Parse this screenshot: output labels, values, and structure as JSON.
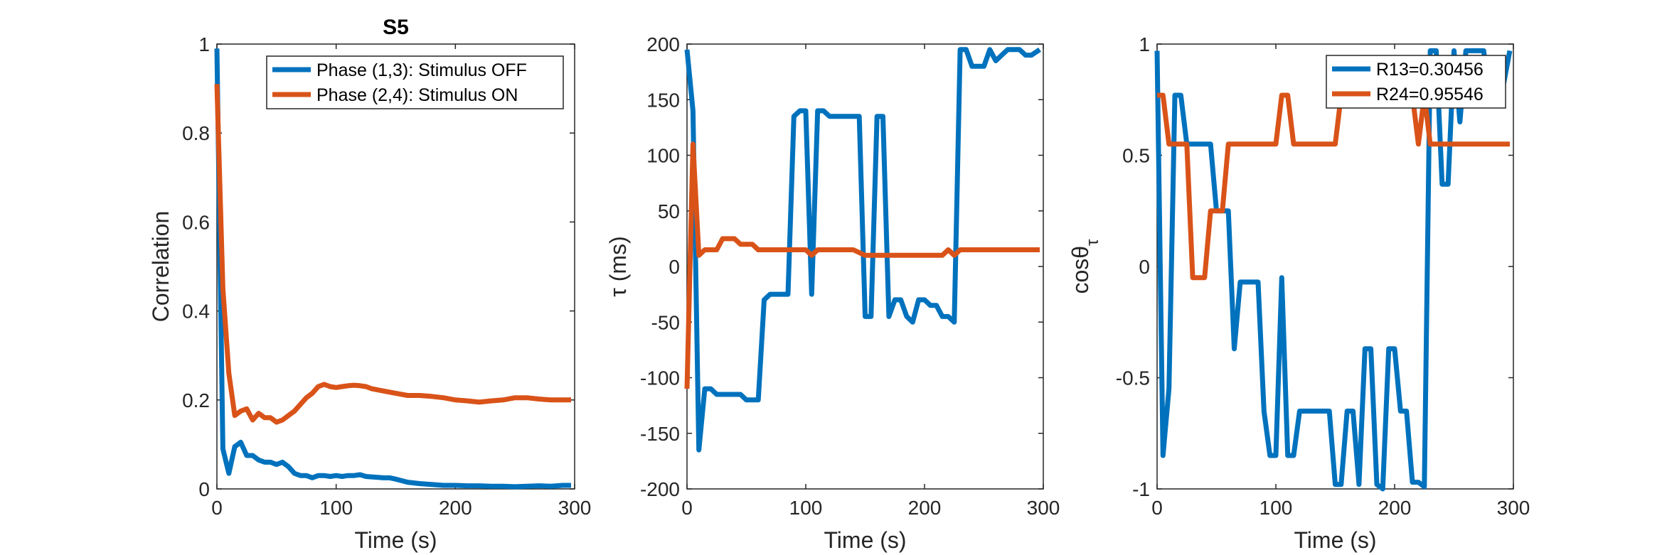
{
  "chart_data": [
    {
      "type": "line",
      "title": "S5",
      "xlabel": "Time (s)",
      "ylabel": "Correlation",
      "xlim": [
        0,
        300
      ],
      "ylim": [
        0,
        1
      ],
      "xticks": [
        "0",
        "100",
        "200",
        "300"
      ],
      "yticks": [
        "0",
        "0.2",
        "0.4",
        "0.6",
        "0.8",
        "1"
      ],
      "legend_position": "top-right",
      "series": [
        {
          "name": "Phase (1,3): Stimulus OFF",
          "color": "#0072BD",
          "x": [
            0,
            5,
            10,
            15,
            20,
            25,
            30,
            35,
            40,
            45,
            50,
            55,
            60,
            65,
            70,
            75,
            80,
            85,
            90,
            95,
            100,
            105,
            110,
            115,
            120,
            125,
            130,
            135,
            140,
            145,
            150,
            160,
            170,
            180,
            190,
            200,
            210,
            220,
            230,
            240,
            250,
            260,
            270,
            280,
            290,
            297
          ],
          "y": [
            0.99,
            0.09,
            0.035,
            0.095,
            0.105,
            0.075,
            0.075,
            0.065,
            0.06,
            0.06,
            0.055,
            0.06,
            0.05,
            0.035,
            0.03,
            0.03,
            0.025,
            0.03,
            0.03,
            0.028,
            0.03,
            0.028,
            0.03,
            0.03,
            0.032,
            0.028,
            0.027,
            0.026,
            0.025,
            0.025,
            0.022,
            0.015,
            0.012,
            0.01,
            0.008,
            0.008,
            0.007,
            0.007,
            0.006,
            0.006,
            0.005,
            0.006,
            0.007,
            0.006,
            0.008,
            0.008
          ]
        },
        {
          "name": "Phase (2,4): Stimulus ON",
          "color": "#D95319",
          "x": [
            0,
            5,
            10,
            15,
            20,
            25,
            30,
            35,
            40,
            45,
            50,
            55,
            60,
            65,
            70,
            75,
            80,
            85,
            90,
            95,
            100,
            105,
            110,
            115,
            120,
            125,
            130,
            140,
            150,
            160,
            170,
            180,
            190,
            200,
            210,
            220,
            230,
            240,
            250,
            260,
            270,
            280,
            290,
            297
          ],
          "y": [
            0.91,
            0.45,
            0.26,
            0.165,
            0.175,
            0.18,
            0.155,
            0.17,
            0.16,
            0.16,
            0.15,
            0.155,
            0.165,
            0.175,
            0.19,
            0.205,
            0.215,
            0.23,
            0.235,
            0.23,
            0.228,
            0.23,
            0.232,
            0.233,
            0.232,
            0.23,
            0.225,
            0.22,
            0.215,
            0.21,
            0.21,
            0.208,
            0.205,
            0.2,
            0.198,
            0.195,
            0.198,
            0.2,
            0.205,
            0.205,
            0.202,
            0.2,
            0.2,
            0.2
          ]
        }
      ]
    },
    {
      "type": "line",
      "title": "",
      "xlabel": "Time (s)",
      "ylabel": "τ (ms)",
      "xlim": [
        0,
        300
      ],
      "ylim": [
        -200,
        200
      ],
      "xticks": [
        "0",
        "100",
        "200",
        "300"
      ],
      "yticks": [
        "-200",
        "-150",
        "-100",
        "-50",
        "0",
        "50",
        "100",
        "150",
        "200"
      ],
      "series": [
        {
          "color": "#0072BD",
          "x": [
            0,
            5,
            10,
            15,
            20,
            25,
            30,
            35,
            40,
            45,
            50,
            55,
            60,
            65,
            70,
            75,
            80,
            85,
            90,
            95,
            100,
            105,
            110,
            115,
            120,
            125,
            130,
            135,
            140,
            145,
            150,
            155,
            160,
            165,
            170,
            175,
            180,
            185,
            190,
            195,
            200,
            205,
            210,
            215,
            220,
            225,
            230,
            235,
            240,
            245,
            250,
            255,
            260,
            265,
            270,
            275,
            280,
            285,
            290,
            297
          ],
          "y": [
            195,
            140,
            -165,
            -110,
            -110,
            -115,
            -115,
            -115,
            -115,
            -115,
            -120,
            -120,
            -120,
            -30,
            -25,
            -25,
            -25,
            -25,
            135,
            140,
            140,
            -25,
            140,
            140,
            135,
            135,
            135,
            135,
            135,
            135,
            -45,
            -45,
            135,
            135,
            -45,
            -30,
            -30,
            -45,
            -50,
            -30,
            -30,
            -35,
            -35,
            -45,
            -45,
            -50,
            195,
            195,
            180,
            180,
            180,
            195,
            185,
            190,
            195,
            195,
            195,
            190,
            190,
            195
          ]
        },
        {
          "color": "#D95319",
          "x": [
            0,
            5,
            10,
            15,
            20,
            25,
            30,
            35,
            40,
            45,
            50,
            55,
            60,
            65,
            70,
            80,
            90,
            100,
            105,
            110,
            120,
            130,
            140,
            150,
            160,
            170,
            180,
            190,
            200,
            210,
            215,
            220,
            225,
            230,
            240,
            250,
            260,
            270,
            280,
            290,
            297
          ],
          "y": [
            -110,
            110,
            10,
            15,
            15,
            15,
            25,
            25,
            25,
            20,
            20,
            20,
            15,
            15,
            15,
            15,
            15,
            15,
            10,
            15,
            15,
            15,
            15,
            10,
            10,
            10,
            10,
            10,
            10,
            10,
            10,
            15,
            10,
            15,
            15,
            15,
            15,
            15,
            15,
            15,
            15
          ]
        }
      ]
    },
    {
      "type": "line",
      "title": "",
      "xlabel": "Time (s)",
      "ylabel": "cosθ",
      "ylabel_subscript": "τ",
      "xlim": [
        0,
        300
      ],
      "ylim": [
        -1,
        1
      ],
      "xticks": [
        "0",
        "100",
        "200",
        "300"
      ],
      "yticks": [
        "-1",
        "-0.5",
        "0",
        "0.5",
        "1"
      ],
      "legend_position": "top-right",
      "series": [
        {
          "name": "R13=0.30456",
          "color": "#0072BD",
          "x": [
            0,
            5,
            10,
            15,
            20,
            25,
            30,
            35,
            40,
            45,
            50,
            55,
            60,
            65,
            70,
            75,
            80,
            85,
            90,
            95,
            100,
            105,
            110,
            115,
            120,
            125,
            130,
            135,
            140,
            145,
            150,
            155,
            160,
            165,
            170,
            175,
            180,
            185,
            190,
            195,
            200,
            205,
            210,
            215,
            220,
            225,
            230,
            235,
            240,
            245,
            250,
            255,
            260,
            265,
            270,
            275,
            280,
            285,
            290,
            297
          ],
          "y": [
            0.97,
            -0.85,
            -0.55,
            0.77,
            0.77,
            0.55,
            0.55,
            0.55,
            0.55,
            0.55,
            0.25,
            0.25,
            0.25,
            -0.37,
            -0.07,
            -0.07,
            -0.07,
            -0.07,
            -0.65,
            -0.85,
            -0.85,
            -0.05,
            -0.85,
            -0.85,
            -0.65,
            -0.65,
            -0.65,
            -0.65,
            -0.65,
            -0.65,
            -0.98,
            -0.98,
            -0.65,
            -0.65,
            -0.98,
            -0.37,
            -0.37,
            -0.98,
            -1.0,
            -0.37,
            -0.37,
            -0.65,
            -0.65,
            -0.97,
            -0.97,
            -0.99,
            0.97,
            0.97,
            0.37,
            0.37,
            0.97,
            0.65,
            0.97,
            0.97,
            0.97,
            0.97,
            0.75,
            0.77,
            0.77,
            0.97
          ]
        },
        {
          "name": "R24=0.95546",
          "color": "#D95319",
          "x": [
            0,
            5,
            10,
            15,
            20,
            25,
            30,
            35,
            40,
            45,
            50,
            55,
            60,
            65,
            70,
            80,
            90,
            100,
            105,
            110,
            115,
            120,
            130,
            140,
            150,
            155,
            160,
            165,
            170,
            180,
            190,
            200,
            210,
            215,
            220,
            225,
            230,
            240,
            250,
            260,
            270,
            280,
            290,
            297
          ],
          "y": [
            0.77,
            0.77,
            0.55,
            0.55,
            0.55,
            0.55,
            -0.05,
            -0.05,
            -0.05,
            0.25,
            0.25,
            0.25,
            0.55,
            0.55,
            0.55,
            0.55,
            0.55,
            0.55,
            0.77,
            0.77,
            0.55,
            0.55,
            0.55,
            0.55,
            0.55,
            0.77,
            0.77,
            0.77,
            0.77,
            0.77,
            0.77,
            0.77,
            0.77,
            0.77,
            0.55,
            0.77,
            0.55,
            0.55,
            0.55,
            0.55,
            0.55,
            0.55,
            0.55,
            0.55
          ]
        }
      ]
    }
  ]
}
